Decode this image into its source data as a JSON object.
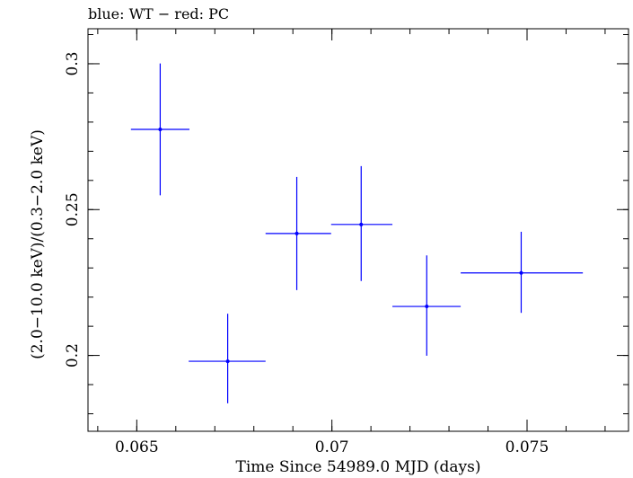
{
  "chart_data": {
    "type": "scatter",
    "title": "blue: WT − red: PC",
    "xlabel": "Time Since 54989.0 MJD (days)",
    "ylabel": "(2.0−10.0 keV)/(0.3−2.0 keV)",
    "xlim": [
      0.06375,
      0.0776
    ],
    "ylim": [
      0.174,
      0.312
    ],
    "x_ticks": [
      {
        "value": 0.065,
        "label": "0.065"
      },
      {
        "value": 0.07,
        "label": "0.07"
      },
      {
        "value": 0.075,
        "label": "0.075"
      }
    ],
    "y_ticks": [
      {
        "value": 0.2,
        "label": "0.2"
      },
      {
        "value": 0.25,
        "label": "0.25"
      },
      {
        "value": 0.3,
        "label": "0.3"
      }
    ],
    "x_minor_step": 0.001,
    "y_minor_step": 0.01,
    "grid": false,
    "series": [
      {
        "color": "#0000ff",
        "points": [
          {
            "x": 0.0656,
            "xerr_lo": 0.06485,
            "xerr_hi": 0.06635,
            "y": 0.2775,
            "yerr_lo": 0.2549,
            "yerr_hi": 0.3001
          },
          {
            "x": 0.06733,
            "xerr_lo": 0.06633,
            "xerr_hi": 0.0683,
            "y": 0.198,
            "yerr_lo": 0.1836,
            "yerr_hi": 0.2143
          },
          {
            "x": 0.0691,
            "xerr_lo": 0.0683,
            "xerr_hi": 0.06998,
            "y": 0.2418,
            "yerr_lo": 0.2224,
            "yerr_hi": 0.2612
          },
          {
            "x": 0.07075,
            "xerr_lo": 0.06998,
            "xerr_hi": 0.07155,
            "y": 0.2449,
            "yerr_lo": 0.2255,
            "yerr_hi": 0.2649
          },
          {
            "x": 0.07243,
            "xerr_lo": 0.07155,
            "xerr_hi": 0.0733,
            "y": 0.2168,
            "yerr_lo": 0.1999,
            "yerr_hi": 0.2343
          },
          {
            "x": 0.07485,
            "xerr_lo": 0.0733,
            "xerr_hi": 0.07643,
            "y": 0.2283,
            "yerr_lo": 0.2146,
            "yerr_hi": 0.2424
          }
        ]
      }
    ]
  }
}
